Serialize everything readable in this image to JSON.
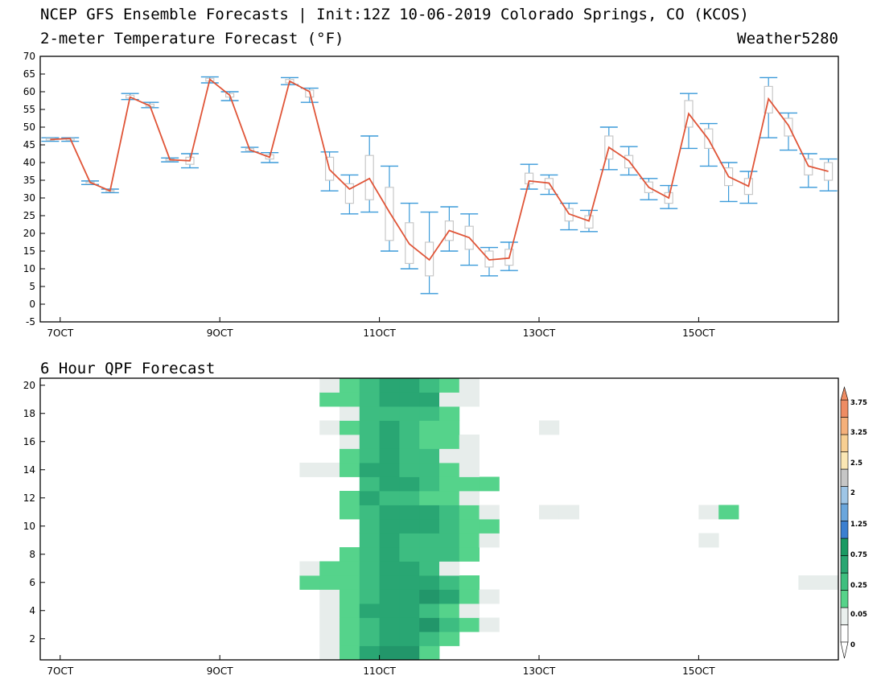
{
  "header": {
    "title": "NCEP GFS Ensemble Forecasts | Init:12Z 10-06-2019 Colorado Springs, CO (KCOS)",
    "subtitle": "2-meter Temperature Forecast (°F)",
    "brand": "Weather5280"
  },
  "qpf_header": {
    "title": "6 Hour QPF Forecast"
  },
  "colors": {
    "mean_line": "#e05538",
    "whisker": "#3a9ad9",
    "box": "#c8c8c8"
  },
  "chart_data": [
    {
      "type": "box",
      "name": "temperature",
      "title": "2-meter Temperature Forecast (°F)",
      "xlabel": "",
      "ylabel": "",
      "ylim": [
        -5,
        70
      ],
      "yticks": [
        -5,
        0,
        5,
        10,
        15,
        20,
        25,
        30,
        35,
        40,
        45,
        50,
        55,
        60,
        65,
        70
      ],
      "xticks": [
        {
          "t": 1,
          "label": "7OCT"
        },
        {
          "t": 9,
          "label": "9OCT"
        },
        {
          "t": 17,
          "label": "11OCT"
        },
        {
          "t": 25,
          "label": "13OCT"
        },
        {
          "t": 33,
          "label": "15OCT"
        }
      ],
      "xrange": [
        0,
        40
      ],
      "grid": false,
      "boxes": [
        {
          "t": 0.5,
          "lo": 46,
          "q1": 46.3,
          "q3": 46.8,
          "hi": 47,
          "mean": 46.5
        },
        {
          "t": 1.5,
          "lo": 46,
          "q1": 46.3,
          "q3": 46.8,
          "hi": 47,
          "mean": 46.8
        },
        {
          "t": 2.5,
          "lo": 33.8,
          "q1": 34,
          "q3": 34.5,
          "hi": 34.8,
          "mean": 34.4
        },
        {
          "t": 3.5,
          "lo": 31.5,
          "q1": 31.8,
          "q3": 32.2,
          "hi": 32.5,
          "mean": 32
        },
        {
          "t": 4.5,
          "lo": 57.8,
          "q1": 58.2,
          "q3": 59,
          "hi": 59.5,
          "mean": 58.5
        },
        {
          "t": 5.5,
          "lo": 55.5,
          "q1": 55.8,
          "q3": 56.5,
          "hi": 57,
          "mean": 56
        },
        {
          "t": 6.5,
          "lo": 40.2,
          "q1": 40.5,
          "q3": 41,
          "hi": 41.3,
          "mean": 40.8
        },
        {
          "t": 7.5,
          "lo": 38.5,
          "q1": 39.5,
          "q3": 41.5,
          "hi": 42.5,
          "mean": 40.5
        },
        {
          "t": 8.5,
          "lo": 62.5,
          "q1": 63,
          "q3": 63.8,
          "hi": 64.2,
          "mean": 63.5
        },
        {
          "t": 9.5,
          "lo": 57.5,
          "q1": 58.5,
          "q3": 59.5,
          "hi": 60,
          "mean": 59
        },
        {
          "t": 10.5,
          "lo": 43,
          "q1": 43.3,
          "q3": 44,
          "hi": 44.3,
          "mean": 43.6
        },
        {
          "t": 11.5,
          "lo": 40,
          "q1": 41,
          "q3": 42.2,
          "hi": 42.8,
          "mean": 41.5
        },
        {
          "t": 12.5,
          "lo": 62,
          "q1": 62.5,
          "q3": 63.5,
          "hi": 64,
          "mean": 63
        },
        {
          "t": 13.5,
          "lo": 57,
          "q1": 58.5,
          "q3": 60.5,
          "hi": 61,
          "mean": 60
        },
        {
          "t": 14.5,
          "lo": 32,
          "q1": 35,
          "q3": 41.5,
          "hi": 43,
          "mean": 38
        },
        {
          "t": 15.5,
          "lo": 25.5,
          "q1": 28.5,
          "q3": 34,
          "hi": 36.5,
          "mean": 32.5
        },
        {
          "t": 16.5,
          "lo": 26,
          "q1": 29.5,
          "q3": 42,
          "hi": 47.5,
          "mean": 35.5
        },
        {
          "t": 17.5,
          "lo": 15,
          "q1": 18,
          "q3": 33,
          "hi": 39,
          "mean": 26
        },
        {
          "t": 18.5,
          "lo": 10,
          "q1": 11.5,
          "q3": 23,
          "hi": 28.5,
          "mean": 17
        },
        {
          "t": 19.5,
          "lo": 3,
          "q1": 8,
          "q3": 17.5,
          "hi": 26,
          "mean": 12.5
        },
        {
          "t": 20.5,
          "lo": 15,
          "q1": 18,
          "q3": 23.5,
          "hi": 27.5,
          "mean": 20.8
        },
        {
          "t": 21.5,
          "lo": 11,
          "q1": 15.5,
          "q3": 22,
          "hi": 25.5,
          "mean": 18.8
        },
        {
          "t": 22.5,
          "lo": 8,
          "q1": 10.5,
          "q3": 15,
          "hi": 16,
          "mean": 12.5
        },
        {
          "t": 23.5,
          "lo": 9.5,
          "q1": 11,
          "q3": 15.5,
          "hi": 17.5,
          "mean": 13
        },
        {
          "t": 24.5,
          "lo": 32.5,
          "q1": 34,
          "q3": 37,
          "hi": 39.5,
          "mean": 34.8
        },
        {
          "t": 25.5,
          "lo": 31,
          "q1": 32.5,
          "q3": 35.5,
          "hi": 36.5,
          "mean": 34.2
        },
        {
          "t": 26.5,
          "lo": 21,
          "q1": 23.5,
          "q3": 27,
          "hi": 28.5,
          "mean": 25.5
        },
        {
          "t": 27.5,
          "lo": 20.5,
          "q1": 21.5,
          "q3": 25,
          "hi": 26.5,
          "mean": 23.5
        },
        {
          "t": 28.5,
          "lo": 38,
          "q1": 41,
          "q3": 47.5,
          "hi": 50,
          "mean": 44.3
        },
        {
          "t": 29.5,
          "lo": 36.5,
          "q1": 38.5,
          "q3": 42,
          "hi": 44.5,
          "mean": 40.5
        },
        {
          "t": 30.5,
          "lo": 29.5,
          "q1": 31.5,
          "q3": 34.5,
          "hi": 35.5,
          "mean": 33
        },
        {
          "t": 31.5,
          "lo": 27,
          "q1": 28.5,
          "q3": 31.5,
          "hi": 33.5,
          "mean": 30
        },
        {
          "t": 32.5,
          "lo": 44,
          "q1": 50,
          "q3": 57.5,
          "hi": 59.5,
          "mean": 53.8
        },
        {
          "t": 33.5,
          "lo": 39,
          "q1": 44,
          "q3": 49.5,
          "hi": 51,
          "mean": 46.5
        },
        {
          "t": 34.5,
          "lo": 29,
          "q1": 33.5,
          "q3": 38.5,
          "hi": 40,
          "mean": 36
        },
        {
          "t": 35.5,
          "lo": 28.5,
          "q1": 31,
          "q3": 35.5,
          "hi": 37.5,
          "mean": 33.3
        },
        {
          "t": 36.5,
          "lo": 47,
          "q1": 54,
          "q3": 61.5,
          "hi": 64,
          "mean": 58
        },
        {
          "t": 37.5,
          "lo": 43.5,
          "q1": 47.5,
          "q3": 52.5,
          "hi": 54,
          "mean": 50.5
        },
        {
          "t": 38.5,
          "lo": 33,
          "q1": 36.5,
          "q3": 41,
          "hi": 42.5,
          "mean": 39
        },
        {
          "t": 39.5,
          "lo": 32,
          "q1": 35,
          "q3": 40,
          "hi": 41,
          "mean": 37.5
        }
      ]
    },
    {
      "type": "heatmap",
      "name": "qpf",
      "title": "6 Hour QPF Forecast",
      "xlabel": "",
      "ylabel": "",
      "ylim": [
        0.5,
        20.5
      ],
      "yticks": [
        2,
        4,
        6,
        8,
        10,
        12,
        14,
        16,
        18,
        20
      ],
      "xticks": [
        {
          "t": 1,
          "label": "7OCT"
        },
        {
          "t": 9,
          "label": "9OCT"
        },
        {
          "t": 17,
          "label": "11OCT"
        },
        {
          "t": 25,
          "label": "13OCT"
        },
        {
          "t": 33,
          "label": "15OCT"
        }
      ],
      "xrange": [
        0,
        40
      ],
      "colorbar": {
        "levels": [
          "0",
          "0.05",
          "0.25",
          "0.75",
          "1.25",
          "2",
          "2.5",
          "3.25",
          "3.75"
        ],
        "colors": [
          "#ffffff",
          "#eaf0ee",
          "#57d38a",
          "#3fbf7f",
          "#2aa672",
          "#1a9a63",
          "#3b7fd0",
          "#6aa6dc",
          "#9ec5e6",
          "#c6c6c6",
          "#fbe7b4",
          "#f8cf92",
          "#f5b07a",
          "#ee8c63"
        ]
      },
      "rows": [
        {
          "m": 1,
          "cells": {
            "15": 1,
            "16": 2,
            "17": 4,
            "18": 5,
            "19": 5,
            "20": 2
          }
        },
        {
          "m": 2,
          "cells": {
            "15": 1,
            "16": 2,
            "17": 3,
            "18": 4,
            "19": 4,
            "20": 3,
            "21": 2
          }
        },
        {
          "m": 3,
          "cells": {
            "15": 1,
            "16": 2,
            "17": 3,
            "18": 4,
            "19": 4,
            "20": 5,
            "21": 3,
            "22": 2,
            "23": 1
          }
        },
        {
          "m": 4,
          "cells": {
            "15": 1,
            "16": 2,
            "17": 4,
            "18": 4,
            "19": 4,
            "20": 3,
            "21": 2,
            "22": 1
          }
        },
        {
          "m": 5,
          "cells": {
            "15": 1,
            "16": 2,
            "17": 3,
            "18": 4,
            "19": 4,
            "20": 5,
            "21": 4,
            "22": 2,
            "23": 1
          }
        },
        {
          "m": 6,
          "cells": {
            "14": 2,
            "15": 2,
            "16": 2,
            "17": 3,
            "18": 4,
            "19": 4,
            "20": 4,
            "21": 3,
            "22": 2,
            "39": 1,
            "40": 1
          }
        },
        {
          "m": 7,
          "cells": {
            "14": 1,
            "15": 2,
            "16": 2,
            "17": 3,
            "18": 4,
            "19": 4,
            "20": 3,
            "21": 1
          }
        },
        {
          "m": 8,
          "cells": {
            "16": 2,
            "17": 3,
            "18": 4,
            "19": 3,
            "20": 3,
            "21": 3,
            "22": 2
          }
        },
        {
          "m": 9,
          "cells": {
            "17": 3,
            "18": 4,
            "19": 3,
            "20": 3,
            "21": 3,
            "22": 2,
            "23": 1,
            "34": 1
          }
        },
        {
          "m": 10,
          "cells": {
            "17": 3,
            "18": 4,
            "19": 4,
            "20": 4,
            "21": 3,
            "22": 2,
            "23": 2
          }
        },
        {
          "m": 11,
          "cells": {
            "16": 2,
            "17": 3,
            "18": 4,
            "19": 4,
            "20": 4,
            "21": 3,
            "22": 2,
            "23": 1,
            "26": 1,
            "27": 1,
            "34": 1,
            "35": 2
          }
        },
        {
          "m": 12,
          "cells": {
            "16": 2,
            "17": 4,
            "18": 3,
            "19": 3,
            "20": 2,
            "21": 2,
            "22": 1
          }
        },
        {
          "m": 13,
          "cells": {
            "17": 3,
            "18": 4,
            "19": 4,
            "20": 3,
            "21": 2,
            "22": 2,
            "23": 2
          }
        },
        {
          "m": 14,
          "cells": {
            "14": 1,
            "15": 1,
            "16": 2,
            "17": 4,
            "18": 4,
            "19": 3,
            "20": 3,
            "21": 2,
            "22": 1
          }
        },
        {
          "m": 15,
          "cells": {
            "16": 2,
            "17": 3,
            "18": 4,
            "19": 3,
            "20": 3,
            "21": 1,
            "22": 1
          }
        },
        {
          "m": 16,
          "cells": {
            "16": 1,
            "17": 3,
            "18": 4,
            "19": 3,
            "20": 2,
            "21": 2,
            "22": 1
          }
        },
        {
          "m": 17,
          "cells": {
            "15": 1,
            "16": 2,
            "17": 3,
            "18": 4,
            "19": 3,
            "20": 2,
            "21": 2,
            "26": 1
          }
        },
        {
          "m": 18,
          "cells": {
            "16": 1,
            "17": 3,
            "18": 3,
            "19": 3,
            "20": 3,
            "21": 2
          }
        },
        {
          "m": 19,
          "cells": {
            "15": 2,
            "16": 2,
            "17": 3,
            "18": 4,
            "19": 4,
            "20": 4,
            "21": 1,
            "22": 1
          }
        },
        {
          "m": 20,
          "cells": {
            "15": 1,
            "16": 2,
            "17": 3,
            "18": 4,
            "19": 4,
            "20": 3,
            "21": 2,
            "22": 1
          }
        }
      ]
    }
  ]
}
